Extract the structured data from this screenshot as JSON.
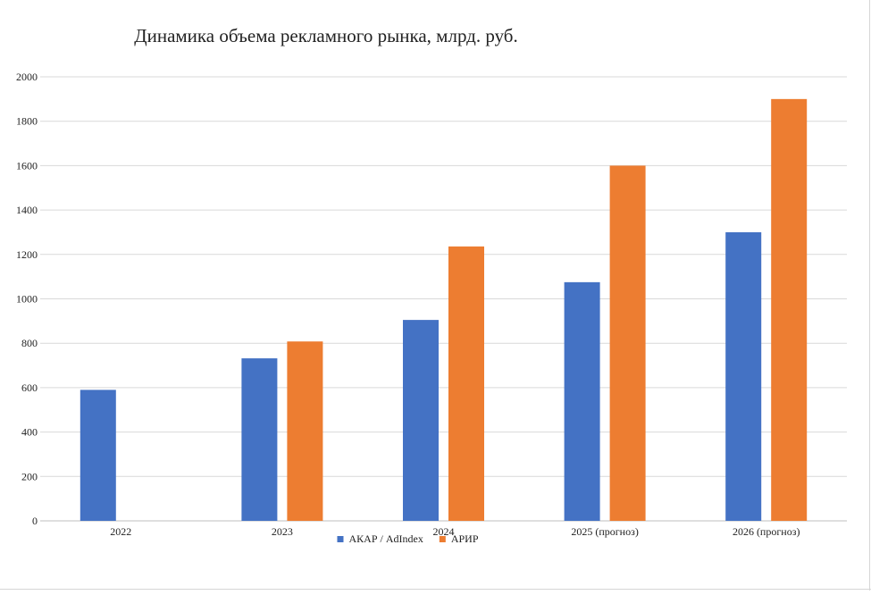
{
  "chart_data": {
    "type": "bar",
    "title": "Динамика объема рекламного рынка, млрд. руб.",
    "xlabel": "",
    "ylabel": "",
    "ylim": [
      0,
      2000
    ],
    "yticks": [
      0,
      200,
      400,
      600,
      800,
      1000,
      1200,
      1400,
      1600,
      1800,
      2000
    ],
    "grid": true,
    "legend_position": "bottom",
    "categories": [
      "2022",
      "2023",
      "2024",
      "2025 (прогноз)",
      "2026 (прогноз)"
    ],
    "series": [
      {
        "name": "АКАР / AdIndex",
        "color": "#4472c4",
        "values": [
          590,
          732,
          905,
          1075,
          1300
        ]
      },
      {
        "name": "АРИР",
        "color": "#ed7d31",
        "values": [
          null,
          808,
          1236,
          1600,
          1900
        ]
      }
    ]
  }
}
